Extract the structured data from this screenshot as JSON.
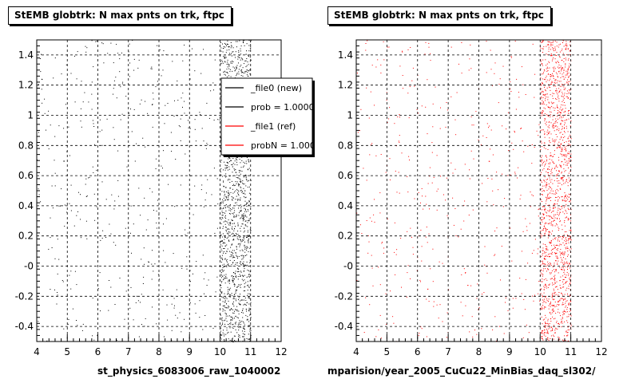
{
  "chart_data": [
    {
      "type": "scatter",
      "title": "StEMB globtrk: N max pnts on trk, ftpc",
      "xlabel": "st_physics_6083006_raw_1040002",
      "ylabel": "",
      "xlim": [
        4,
        12
      ],
      "ylim": [
        -0.5,
        1.5
      ],
      "xticks": [
        "4",
        "5",
        "6",
        "7",
        "8",
        "9",
        "10",
        "11",
        "12"
      ],
      "yticks": [
        "-0.4",
        "-0.2",
        "-0",
        "0.2",
        "0.4",
        "0.6",
        "0.8",
        "1",
        "1.2",
        "1.4"
      ],
      "grid": true,
      "point_color": "#000000",
      "bands": [
        {
          "range": [
            10.0,
            11.0
          ],
          "density": "high"
        },
        {
          "range": [
            4.0,
            10.0
          ],
          "density": "low"
        }
      ],
      "legend": {
        "placement": "top-right",
        "entries": [
          {
            "label": "_file0 (new)",
            "color": "#000000"
          },
          {
            "label": "prob = 1.000000",
            "color": "#000000"
          },
          {
            "label": "_file1 (ref)",
            "color": "#ff0000"
          },
          {
            "label": "probN = 1.000000",
            "color": "#ff0000"
          }
        ]
      }
    },
    {
      "type": "scatter",
      "title": "StEMB globtrk: N max pnts on trk, ftpc",
      "xlabel": "mparision/year_2005_CuCu22_MinBias_daq_sl302/",
      "ylabel": "",
      "xlim": [
        4,
        12
      ],
      "ylim": [
        -0.5,
        1.5
      ],
      "xticks": [
        "4",
        "5",
        "6",
        "7",
        "8",
        "9",
        "10",
        "11",
        "12"
      ],
      "yticks": [
        "-0.4",
        "-0.2",
        "-0",
        "0.2",
        "0.4",
        "0.6",
        "0.8",
        "1",
        "1.2",
        "1.4"
      ],
      "grid": true,
      "point_color": "#ff0000",
      "bands": [
        {
          "range": [
            10.0,
            11.0
          ],
          "density": "high"
        },
        {
          "range": [
            4.0,
            10.0
          ],
          "density": "low"
        }
      ]
    }
  ]
}
